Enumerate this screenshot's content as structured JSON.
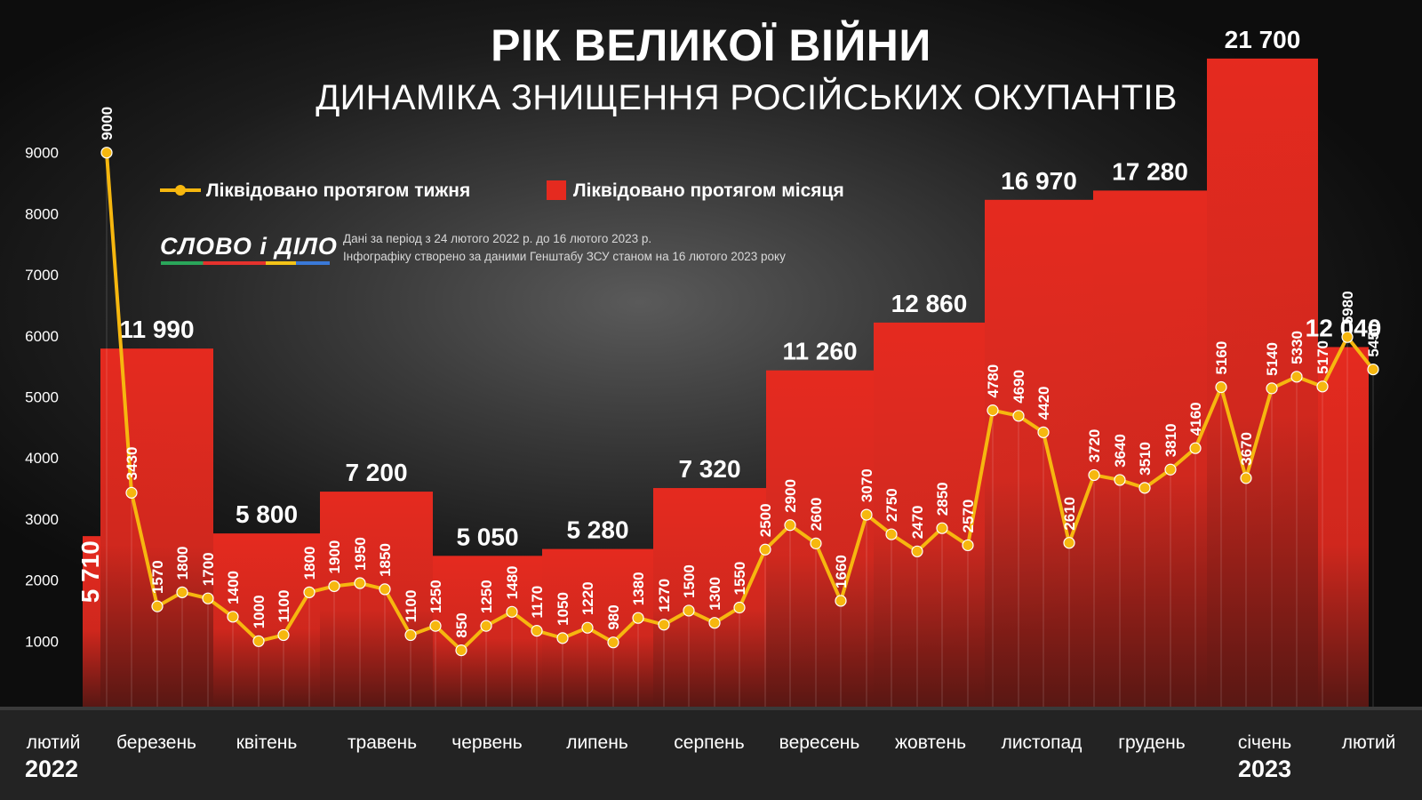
{
  "header": {
    "title": "РІК ВЕЛИКОЇ ВІЙНИ",
    "subtitle": "ДИНАМІКА ЗНИЩЕННЯ РОСІЙСЬКИХ ОКУПАНТІВ"
  },
  "legend": {
    "line_label": "Ліквідовано протягом тижня",
    "bar_label": "Ліквідовано протягом місяця"
  },
  "brand": {
    "logo_text": "СЛОВО і ДІЛО",
    "note_line1": "Дані за період з 24 лютого 2022 р. до 16 лютого 2023 р.",
    "note_line2": "Інфографіку створено за даними Генштабу ЗСУ станом на 16 лютого 2023 року"
  },
  "colors": {
    "bar": "#e52a1f",
    "line": "#f6b70f",
    "text": "#ffffff"
  },
  "chart_data": {
    "type": "bar+line",
    "title": "РІК ВЕЛИКОЇ ВІЙНИ",
    "subtitle": "ДИНАМІКА ЗНИЩЕННЯ РОСІЙСЬКИХ ОКУПАНТІВ",
    "y_ticks": [
      1000,
      2000,
      3000,
      4000,
      5000,
      6000,
      7000,
      8000,
      9000
    ],
    "ylim": [
      0,
      11500
    ],
    "grid": false,
    "legend_position": "top-left",
    "months": [
      {
        "label": "лютий",
        "year": "2022",
        "monthly": 5710,
        "monthly_label": "5 710",
        "weekly": [
          9000
        ]
      },
      {
        "label": "березень",
        "year": "",
        "monthly": 11990,
        "monthly_label": "11 990",
        "weekly": [
          3430,
          1570,
          1800,
          1700
        ]
      },
      {
        "label": "квітень",
        "year": "",
        "monthly": 5800,
        "monthly_label": "5 800",
        "weekly": [
          1400,
          1000,
          1100
        ]
      },
      {
        "label": "травень",
        "year": "",
        "monthly": 7200,
        "monthly_label": "7 200",
        "weekly": [
          1800,
          1900,
          1950,
          1850
        ]
      },
      {
        "label": "червень",
        "year": "",
        "monthly": 5050,
        "monthly_label": "5 050",
        "weekly": [
          1100,
          1250,
          850,
          1250
        ]
      },
      {
        "label": "липень",
        "year": "",
        "monthly": 5280,
        "monthly_label": "5 280",
        "weekly": [
          1480,
          1170,
          1050
        ]
      },
      {
        "label": "серпень",
        "year": "",
        "monthly": 7320,
        "monthly_label": "7 320",
        "weekly": [
          1220,
          980,
          1380,
          1270,
          1500
        ]
      },
      {
        "label": "вересень",
        "year": "",
        "monthly": 11260,
        "monthly_label": "11 260",
        "weekly": [
          1300,
          1550,
          2500,
          2900
        ]
      },
      {
        "label": "жовтень",
        "year": "",
        "monthly": 12860,
        "monthly_label": "12 860",
        "weekly": [
          2600,
          1660,
          3070,
          2750
        ]
      },
      {
        "label": "листопад",
        "year": "",
        "monthly": 16970,
        "monthly_label": "16 970",
        "weekly": [
          2470,
          2850,
          2570,
          4780
        ]
      },
      {
        "label": "грудень",
        "year": "",
        "monthly": 17280,
        "monthly_label": "17 280",
        "weekly": [
          4690,
          4420,
          2610,
          3720
        ]
      },
      {
        "label": "січень",
        "year": "2023",
        "monthly": 21700,
        "monthly_label": "21 700",
        "weekly": [
          3640,
          3510,
          3810,
          4160,
          5160
        ]
      },
      {
        "label": "лютий",
        "year": "",
        "monthly": 12040,
        "monthly_label": "12 040",
        "weekly": [
          3670,
          5140,
          5330,
          5170,
          5980,
          5450
        ]
      }
    ],
    "weekly_series": {
      "name": "Ліквідовано протягом тижня",
      "values": [
        9000,
        3430,
        1570,
        1800,
        1700,
        1400,
        1000,
        1100,
        1800,
        1900,
        1950,
        1850,
        1100,
        1250,
        850,
        1250,
        1480,
        1170,
        1050,
        1220,
        980,
        1380,
        1270,
        1500,
        1300,
        1550,
        2500,
        2900,
        2600,
        1660,
        3070,
        2750,
        2470,
        2850,
        2570,
        4780,
        4690,
        4420,
        2610,
        3720,
        3640,
        3510,
        3810,
        4160,
        5160,
        3670,
        5140,
        5330,
        5170,
        5980,
        5450
      ]
    },
    "monthly_series": {
      "name": "Ліквідовано протягом місяця",
      "values": [
        5710,
        11990,
        5800,
        7200,
        5050,
        5280,
        7320,
        11260,
        12860,
        16970,
        17280,
        21700,
        12040
      ]
    }
  }
}
